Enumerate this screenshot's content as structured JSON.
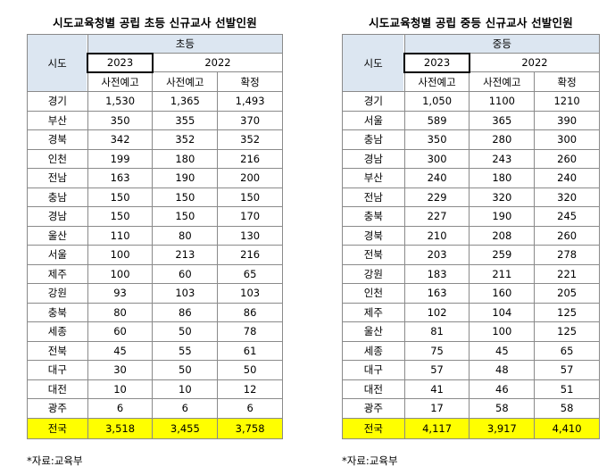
{
  "source_note": "*자료:교육부",
  "tables": [
    {
      "title": "시도교육청별 공립 초등 신규교사 선발인원",
      "header": {
        "region": "시도",
        "level": "초등",
        "year_a": "2023",
        "year_b": "2022",
        "col1": "사전예고",
        "col2": "사전예고",
        "col3": "확정"
      },
      "rows": [
        {
          "region": "경기",
          "c1": "1,530",
          "c2": "1,365",
          "c3": "1,493"
        },
        {
          "region": "부산",
          "c1": "350",
          "c2": "355",
          "c3": "370"
        },
        {
          "region": "경북",
          "c1": "342",
          "c2": "352",
          "c3": "352"
        },
        {
          "region": "인천",
          "c1": "199",
          "c2": "180",
          "c3": "216"
        },
        {
          "region": "전남",
          "c1": "163",
          "c2": "190",
          "c3": "200"
        },
        {
          "region": "충남",
          "c1": "150",
          "c2": "150",
          "c3": "150"
        },
        {
          "region": "경남",
          "c1": "150",
          "c2": "150",
          "c3": "170"
        },
        {
          "region": "울산",
          "c1": "110",
          "c2": "80",
          "c3": "130"
        },
        {
          "region": "서울",
          "c1": "100",
          "c2": "213",
          "c3": "216"
        },
        {
          "region": "제주",
          "c1": "100",
          "c2": "60",
          "c3": "65"
        },
        {
          "region": "강원",
          "c1": "93",
          "c2": "103",
          "c3": "103"
        },
        {
          "region": "충북",
          "c1": "80",
          "c2": "86",
          "c3": "86"
        },
        {
          "region": "세종",
          "c1": "60",
          "c2": "50",
          "c3": "78"
        },
        {
          "region": "전북",
          "c1": "45",
          "c2": "55",
          "c3": "61"
        },
        {
          "region": "대구",
          "c1": "30",
          "c2": "50",
          "c3": "50"
        },
        {
          "region": "대전",
          "c1": "10",
          "c2": "10",
          "c3": "12"
        },
        {
          "region": "광주",
          "c1": "6",
          "c2": "6",
          "c3": "6"
        }
      ],
      "total": {
        "region": "전국",
        "c1": "3,518",
        "c2": "3,455",
        "c3": "3,758"
      }
    },
    {
      "title": "시도교육청별 공립 중등 신규교사 선발인원",
      "header": {
        "region": "시도",
        "level": "중등",
        "year_a": "2023",
        "year_b": "2022",
        "col1": "사전예고",
        "col2": "사전예고",
        "col3": "확정"
      },
      "rows": [
        {
          "region": "경기",
          "c1": "1,050",
          "c2": "1100",
          "c3": "1210"
        },
        {
          "region": "서울",
          "c1": "589",
          "c2": "365",
          "c3": "390"
        },
        {
          "region": "충남",
          "c1": "350",
          "c2": "280",
          "c3": "300"
        },
        {
          "region": "경남",
          "c1": "300",
          "c2": "243",
          "c3": "260"
        },
        {
          "region": "부산",
          "c1": "240",
          "c2": "180",
          "c3": "240"
        },
        {
          "region": "전남",
          "c1": "229",
          "c2": "320",
          "c3": "320"
        },
        {
          "region": "충북",
          "c1": "227",
          "c2": "190",
          "c3": "245"
        },
        {
          "region": "경북",
          "c1": "210",
          "c2": "208",
          "c3": "260"
        },
        {
          "region": "전북",
          "c1": "203",
          "c2": "259",
          "c3": "278"
        },
        {
          "region": "강원",
          "c1": "183",
          "c2": "211",
          "c3": "221"
        },
        {
          "region": "인천",
          "c1": "163",
          "c2": "160",
          "c3": "205"
        },
        {
          "region": "제주",
          "c1": "102",
          "c2": "104",
          "c3": "125"
        },
        {
          "region": "울산",
          "c1": "81",
          "c2": "100",
          "c3": "125"
        },
        {
          "region": "세종",
          "c1": "75",
          "c2": "45",
          "c3": "65"
        },
        {
          "region": "대구",
          "c1": "57",
          "c2": "48",
          "c3": "57"
        },
        {
          "region": "대전",
          "c1": "41",
          "c2": "46",
          "c3": "51"
        },
        {
          "region": "광주",
          "c1": "17",
          "c2": "58",
          "c3": "58"
        }
      ],
      "total": {
        "region": "전국",
        "c1": "4,117",
        "c2": "3,917",
        "c3": "4,410"
      }
    }
  ]
}
